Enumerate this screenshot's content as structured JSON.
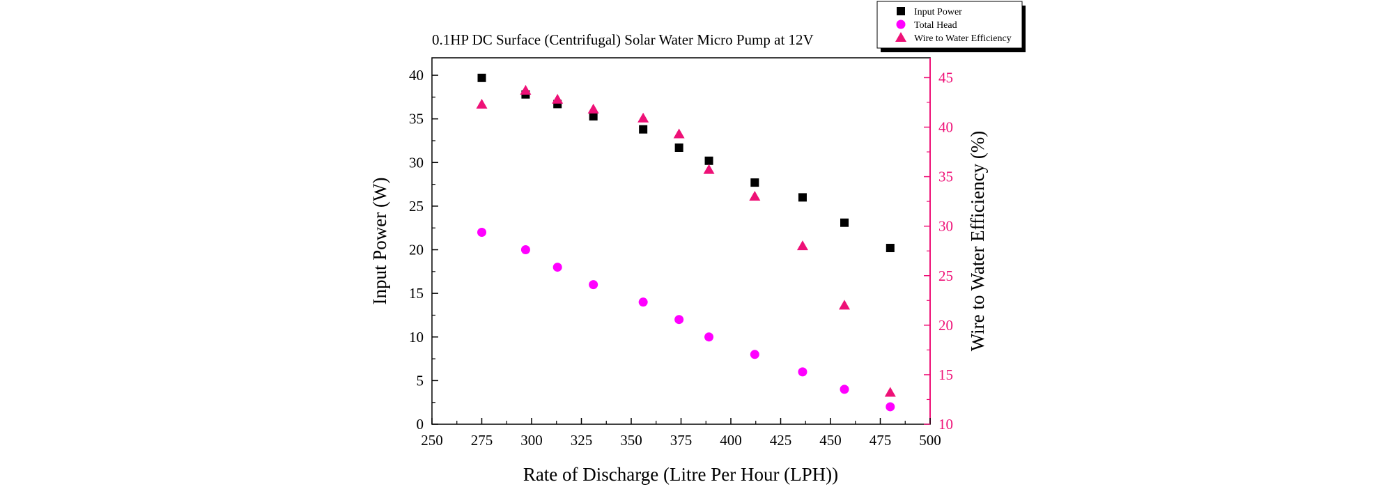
{
  "chart_data": {
    "type": "scatter",
    "title": "0.1HP DC Surface (Centrifugal) Solar Water Micro Pump at 12V",
    "xlabel": "Rate of Discharge (Litre Per Hour (LPH))",
    "ylabel_left": "Input Power (W)",
    "ylabel_right": "Wire to Water Efficiency (%)",
    "xlim": [
      250,
      500
    ],
    "ylim_left": [
      0,
      42
    ],
    "ylim_right": [
      10,
      47
    ],
    "x_ticks": [
      "250",
      "275",
      "300",
      "325",
      "350",
      "375",
      "400",
      "425",
      "450",
      "475",
      "500"
    ],
    "y_left_ticks": [
      "0",
      "5",
      "10",
      "15",
      "20",
      "25",
      "30",
      "35",
      "40"
    ],
    "y_right_ticks": [
      "10",
      "15",
      "20",
      "25",
      "30",
      "35",
      "40",
      "45"
    ],
    "legend_position": "top-right",
    "colors": {
      "input_power": "#000000",
      "total_head": "#ff00ff",
      "efficiency": "#ee1177",
      "right_axis": "#ee1177"
    },
    "series": [
      {
        "name": "Input Power",
        "axis": "left",
        "marker": "square",
        "x": [
          275,
          297,
          313,
          331,
          356,
          374,
          389,
          412,
          436,
          457,
          480
        ],
        "y": [
          39.7,
          37.8,
          36.7,
          35.3,
          33.8,
          31.7,
          30.2,
          27.7,
          26.0,
          23.1,
          20.2
        ]
      },
      {
        "name": "Total Head",
        "axis": "left",
        "marker": "circle",
        "x": [
          275,
          297,
          313,
          331,
          356,
          374,
          389,
          412,
          436,
          457,
          480
        ],
        "y": [
          22,
          20,
          18,
          16,
          14,
          12,
          10,
          8,
          6,
          4,
          2
        ]
      },
      {
        "name": "Wire to Water Efficiency",
        "axis": "right",
        "marker": "triangle",
        "x": [
          275,
          297,
          313,
          331,
          356,
          374,
          389,
          412,
          436,
          457,
          480
        ],
        "y": [
          42.3,
          43.7,
          42.8,
          41.8,
          40.9,
          39.3,
          35.7,
          33.0,
          28.0,
          22.0,
          13.2
        ]
      }
    ]
  }
}
